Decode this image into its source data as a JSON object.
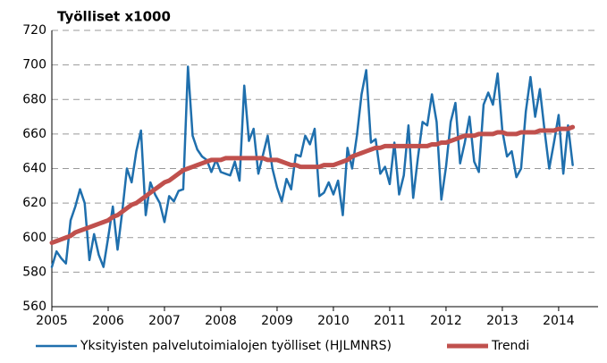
{
  "chart_data": {
    "type": "line",
    "title": "Työlliset x1000",
    "x": [
      2005,
      2005.083,
      2005.167,
      2005.25,
      2005.333,
      2005.417,
      2005.5,
      2005.583,
      2005.667,
      2005.75,
      2005.833,
      2005.917,
      2006,
      2006.083,
      2006.167,
      2006.25,
      2006.333,
      2006.417,
      2006.5,
      2006.583,
      2006.667,
      2006.75,
      2006.833,
      2006.917,
      2007,
      2007.083,
      2007.167,
      2007.25,
      2007.333,
      2007.417,
      2007.5,
      2007.583,
      2007.667,
      2007.75,
      2007.833,
      2007.917,
      2008,
      2008.083,
      2008.167,
      2008.25,
      2008.333,
      2008.417,
      2008.5,
      2008.583,
      2008.667,
      2008.75,
      2008.833,
      2008.917,
      2009,
      2009.083,
      2009.167,
      2009.25,
      2009.333,
      2009.417,
      2009.5,
      2009.583,
      2009.667,
      2009.75,
      2009.833,
      2009.917,
      2010,
      2010.083,
      2010.167,
      2010.25,
      2010.333,
      2010.417,
      2010.5,
      2010.583,
      2010.667,
      2010.75,
      2010.833,
      2010.917,
      2011,
      2011.083,
      2011.167,
      2011.25,
      2011.333,
      2011.417,
      2011.5,
      2011.583,
      2011.667,
      2011.75,
      2011.833,
      2011.917,
      2012,
      2012.083,
      2012.167,
      2012.25,
      2012.333,
      2012.417,
      2012.5,
      2012.583,
      2012.667,
      2012.75,
      2012.833,
      2012.917,
      2013,
      2013.083,
      2013.167,
      2013.25,
      2013.333,
      2013.417,
      2013.5,
      2013.583,
      2013.667,
      2013.75,
      2013.833,
      2013.917,
      2014,
      2014.083,
      2014.167,
      2014.25
    ],
    "series": [
      {
        "name": "Yksityisten palvelutoimialojen työlliset (HJLMNRS)",
        "color": "#1f6fad",
        "width": 2.5,
        "values": [
          583,
          592,
          588,
          585,
          610,
          618,
          628,
          620,
          587,
          602,
          590,
          583,
          600,
          618,
          593,
          615,
          640,
          632,
          650,
          662,
          613,
          632,
          625,
          620,
          609,
          624,
          621,
          627,
          628,
          699,
          659,
          651,
          647,
          645,
          638,
          645,
          638,
          637,
          636,
          644,
          633,
          688,
          656,
          663,
          637,
          648,
          659,
          640,
          629,
          621,
          634,
          628,
          648,
          647,
          659,
          654,
          663,
          624,
          626,
          632,
          625,
          633,
          613,
          652,
          640,
          659,
          683,
          697,
          655,
          657,
          637,
          641,
          631,
          655,
          625,
          636,
          665,
          623,
          646,
          667,
          665,
          683,
          667,
          622,
          641,
          667,
          678,
          643,
          655,
          670,
          644,
          638,
          677,
          684,
          677,
          695,
          662,
          647,
          650,
          635,
          640,
          673,
          693,
          670,
          686,
          662,
          640,
          655,
          671,
          637,
          665,
          642
        ]
      },
      {
        "name": "Trendi",
        "color": "#c0504d",
        "width": 5,
        "values": [
          597,
          598,
          599,
          600,
          601,
          603,
          604,
          605,
          606,
          607,
          608,
          609,
          610,
          612,
          613,
          615,
          617,
          619,
          620,
          622,
          624,
          626,
          628,
          630,
          632,
          633,
          635,
          637,
          639,
          640,
          641,
          642,
          643,
          644,
          645,
          645,
          645,
          646,
          646,
          646,
          646,
          646,
          646,
          646,
          646,
          646,
          645,
          645,
          645,
          644,
          643,
          642,
          642,
          641,
          641,
          641,
          641,
          641,
          642,
          642,
          642,
          643,
          644,
          645,
          647,
          648,
          649,
          650,
          651,
          652,
          652,
          653,
          653,
          653,
          653,
          653,
          653,
          653,
          653,
          653,
          653,
          654,
          654,
          655,
          655,
          656,
          657,
          658,
          659,
          659,
          659,
          660,
          660,
          660,
          660,
          661,
          661,
          660,
          660,
          660,
          661,
          661,
          661,
          661,
          662,
          662,
          662,
          662,
          663,
          663,
          663,
          664
        ]
      }
    ],
    "xlim": [
      2005,
      2014.7
    ],
    "xticks": [
      2005,
      2006,
      2007,
      2008,
      2009,
      2010,
      2011,
      2012,
      2013,
      2014
    ],
    "ylim": [
      560,
      720
    ],
    "yticks": [
      560,
      580,
      600,
      620,
      640,
      660,
      680,
      700,
      720
    ],
    "grid": true,
    "legend": "bottom"
  }
}
